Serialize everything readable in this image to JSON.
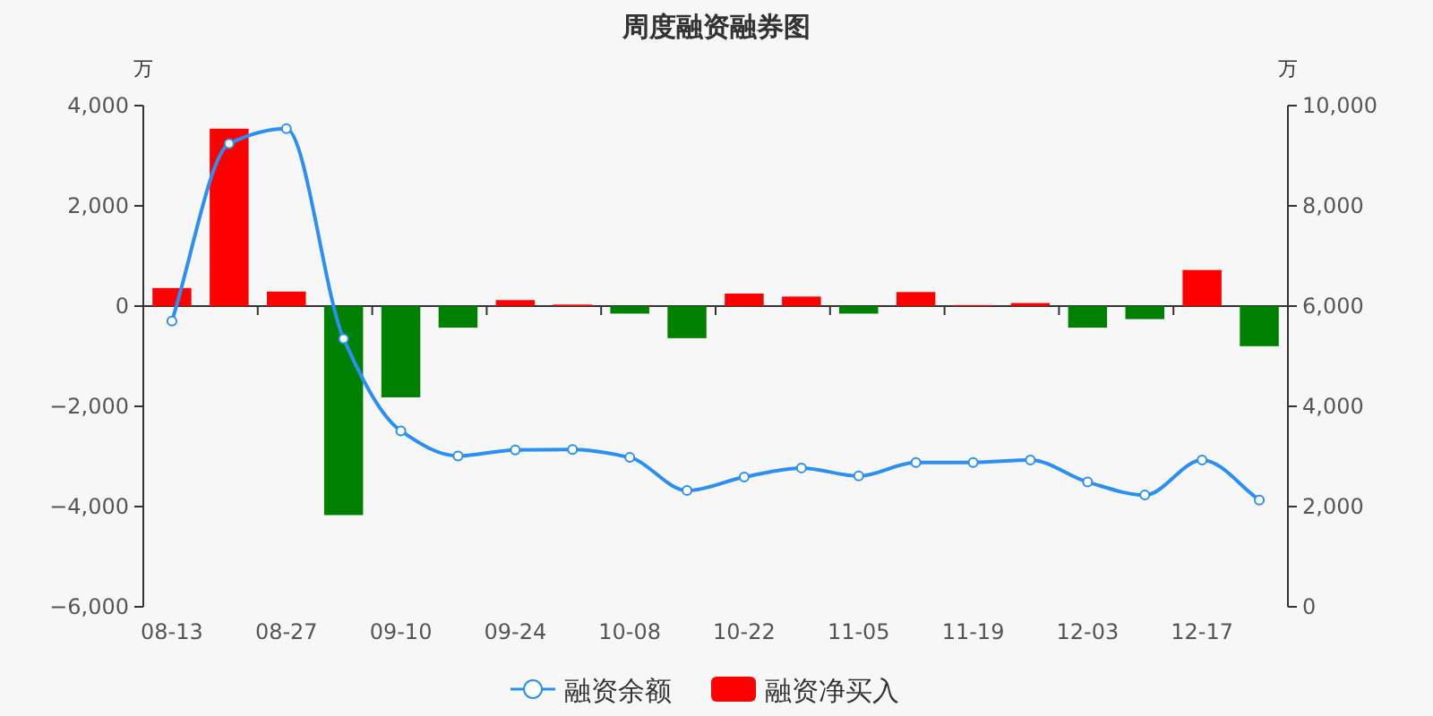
{
  "chart_data": {
    "type": "bar",
    "title": "周度融资融券图",
    "ylabel": "万",
    "y2label": "万",
    "categories": [
      "08-13",
      null,
      "08-27",
      null,
      "09-10",
      null,
      "09-24",
      null,
      "10-08",
      null,
      "10-22",
      null,
      "11-05",
      null,
      "11-19",
      null,
      "12-03",
      null,
      "12-17",
      null
    ],
    "series": [
      {
        "name": "融资余额",
        "type": "line",
        "axis": "y2",
        "color": "#2b8ff5",
        "marker": "circle",
        "values": [
          5700,
          9240,
          9540,
          5350,
          3510,
          3010,
          3130,
          3140,
          2980,
          2320,
          2590,
          2770,
          2610,
          2880,
          2880,
          2930,
          2490,
          2230,
          2930,
          2130
        ]
      },
      {
        "name": "融资净买入",
        "color": "#ff0000",
        "colors": [
          "#ff0000",
          "#ff0000",
          "#ff0000",
          "#008000",
          "#008000",
          "#008000",
          "#ff0000",
          "#ff0000",
          "#008000",
          "#008000",
          "#ff0000",
          "#ff0000",
          "#008000",
          "#ff0000",
          "#ff0000",
          "#ff0000",
          "#008000",
          "#008000",
          "#ff0000",
          "#008000"
        ],
        "values": [
          360,
          3540,
          290,
          -4170,
          -1820,
          -430,
          120,
          30,
          -150,
          -640,
          250,
          190,
          -150,
          280,
          20,
          60,
          -430,
          -260,
          720,
          -800
        ]
      }
    ],
    "ylim": [
      -6000,
      4000
    ],
    "yticks": [
      {
        "value": -6000,
        "label": "−6,000"
      },
      {
        "value": -4000,
        "label": "−4,000"
      },
      {
        "value": -2000,
        "label": "−2,000"
      },
      0,
      {
        "value": 2000,
        "label": "2,000"
      },
      {
        "value": 4000,
        "label": "4,000"
      }
    ],
    "y2lim": [
      0,
      10000
    ],
    "y2ticks": [
      0,
      {
        "value": 2000,
        "label": "2,000"
      },
      {
        "value": 4000,
        "label": "4,000"
      },
      {
        "value": 6000,
        "label": "6,000"
      },
      {
        "value": 8000,
        "label": "8,000"
      },
      {
        "value": 10000,
        "label": "10,000"
      }
    ],
    "legend": "bottom"
  }
}
